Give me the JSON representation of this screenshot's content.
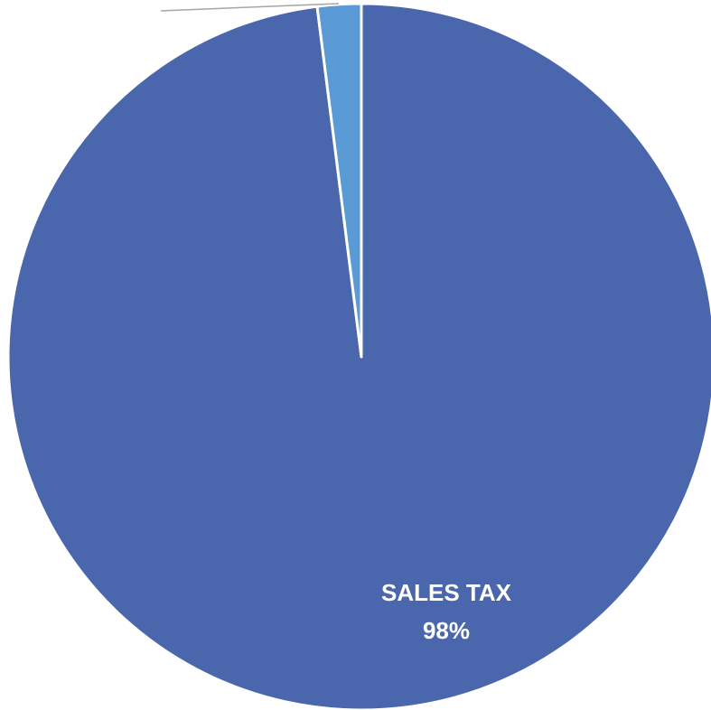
{
  "chart_data": {
    "type": "pie",
    "categories": [
      "SALES TAX",
      null
    ],
    "values": [
      98,
      2
    ],
    "value_labels": [
      "98%",
      null
    ],
    "colors": [
      "#4a66ac",
      "#5b9bd5"
    ]
  }
}
